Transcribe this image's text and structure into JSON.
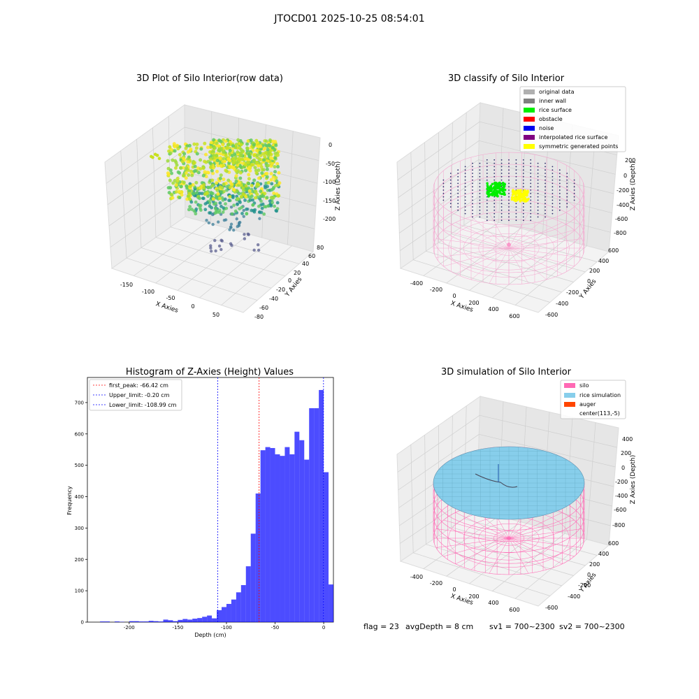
{
  "suptitle": "JTOCD01 2025-10-25 08:54:01",
  "footer": {
    "flag": "flag = 23",
    "avg_depth": "avgDepth = 8 cm",
    "sv1": "sv1 = 700~2300",
    "sv2": "sv2 = 700~2300"
  },
  "panels": {
    "raw": {
      "title": "3D Plot of Silo Interior(row data)",
      "xlabel": "X Axies",
      "ylabel": "Y Axies",
      "zlabel": "Z Axies (Depth)",
      "xticks": [
        "-150",
        "-100",
        "-50",
        "0",
        "50"
      ],
      "yticks": [
        "-80",
        "-60",
        "-40",
        "-20",
        "0",
        "20",
        "40",
        "60",
        "80"
      ],
      "zticks": [
        "0",
        "-50",
        "-100",
        "-150",
        "-200"
      ]
    },
    "classify": {
      "title": "3D classify of Silo Interior",
      "xlabel": "X Axies",
      "ylabel": "Y Axies",
      "zlabel": "Z Axies (Depth)",
      "xticks": [
        "-400",
        "-200",
        "0",
        "200",
        "400",
        "600"
      ],
      "yticks": [
        "-600",
        "-400",
        "-200",
        "0",
        "200",
        "400",
        "600"
      ],
      "zticks": [
        "200",
        "0",
        "-200",
        "-400",
        "-600",
        "-800"
      ],
      "legend": [
        {
          "label": "original data",
          "color": "#b0b0b0"
        },
        {
          "label": "inner wall",
          "color": "#808080"
        },
        {
          "label": "rice surface",
          "color": "#00ee00"
        },
        {
          "label": "obstacle",
          "color": "#ff0000"
        },
        {
          "label": "noise",
          "color": "#0000ee"
        },
        {
          "label": "interpolated rice surface",
          "color": "#800080"
        },
        {
          "label": "symmetric generated points",
          "color": "#ffff00"
        }
      ]
    },
    "histogram": {
      "title": "Histogram of Z-Axies (Height) Values",
      "xlabel": "Depth (cm)",
      "ylabel": "Frequency",
      "xticks": [
        "-200",
        "-150",
        "-100",
        "-50",
        "0"
      ],
      "yticks": [
        "0",
        "100",
        "200",
        "300",
        "400",
        "500",
        "600",
        "700"
      ],
      "legend": [
        {
          "label": "first_peak: -66.42 cm",
          "color": "#ff0000"
        },
        {
          "label": "Upper_limit: -0.20 cm",
          "color": "#0000ff"
        },
        {
          "label": "Lower_limit: -108.99 cm",
          "color": "#0000ff"
        }
      ]
    },
    "simulation": {
      "title": "3D simulation of Silo Interior",
      "xlabel": "X Axies",
      "ylabel": "Y Axies",
      "zlabel": "Z Axies (Depth)",
      "xticks": [
        "-400",
        "-200",
        "0",
        "200",
        "400",
        "600"
      ],
      "yticks": [
        "-600",
        "-400",
        "-200",
        "0",
        "200",
        "400",
        "600"
      ],
      "zticks": [
        "400",
        "200",
        "0",
        "-200",
        "-400",
        "-600",
        "-800"
      ],
      "legend": [
        {
          "label": "silo",
          "color": "#ff69b4"
        },
        {
          "label": "rice simulation",
          "color": "#87ceeb"
        },
        {
          "label": "auger",
          "color": "#ff4500"
        },
        {
          "label": "center(113,-5)",
          "color": ""
        }
      ]
    }
  },
  "chart_data": [
    {
      "type": "scatter",
      "title": "3D Plot of Silo Interior(row data)",
      "xlabel": "X Axies",
      "ylabel": "Y Axies",
      "zlabel": "Z Axies (Depth)",
      "colormap": "viridis",
      "grid": true
    },
    {
      "type": "scatter",
      "title": "3D classify of Silo Interior",
      "xlabel": "X Axies",
      "ylabel": "Y Axies",
      "zlabel": "Z Axies (Depth)",
      "series": [
        {
          "name": "original data",
          "color": "#b0b0b0"
        },
        {
          "name": "inner wall",
          "color": "#808080"
        },
        {
          "name": "rice surface",
          "color": "#00ee00"
        },
        {
          "name": "obstacle",
          "color": "#ff0000"
        },
        {
          "name": "noise",
          "color": "#0000ee"
        },
        {
          "name": "interpolated rice surface",
          "color": "#800080"
        },
        {
          "name": "symmetric generated points",
          "color": "#ffff00"
        }
      ],
      "legend": "top-right",
      "grid": true
    },
    {
      "type": "bar",
      "title": "Histogram of Z-Axies (Height) Values",
      "xlabel": "Depth (cm)",
      "ylabel": "Frequency",
      "xlim": [
        -243,
        10
      ],
      "ylim": [
        0,
        780
      ],
      "bin_width": 5,
      "bars": [
        {
          "x0": -230,
          "v": 2
        },
        {
          "x0": -225,
          "v": 2
        },
        {
          "x0": -215,
          "v": 2
        },
        {
          "x0": -210,
          "v": 1
        },
        {
          "x0": -200,
          "v": 3
        },
        {
          "x0": -195,
          "v": 3
        },
        {
          "x0": -190,
          "v": 2
        },
        {
          "x0": -185,
          "v": 2
        },
        {
          "x0": -180,
          "v": 4
        },
        {
          "x0": -175,
          "v": 3
        },
        {
          "x0": -170,
          "v": 2
        },
        {
          "x0": -165,
          "v": 8
        },
        {
          "x0": -160,
          "v": 6
        },
        {
          "x0": -155,
          "v": 3
        },
        {
          "x0": -150,
          "v": 7
        },
        {
          "x0": -145,
          "v": 10
        },
        {
          "x0": -140,
          "v": 8
        },
        {
          "x0": -135,
          "v": 11
        },
        {
          "x0": -130,
          "v": 13
        },
        {
          "x0": -125,
          "v": 17
        },
        {
          "x0": -120,
          "v": 21
        },
        {
          "x0": -115,
          "v": 12
        },
        {
          "x0": -110,
          "v": 38
        },
        {
          "x0": -105,
          "v": 48
        },
        {
          "x0": -100,
          "v": 58
        },
        {
          "x0": -95,
          "v": 72
        },
        {
          "x0": -90,
          "v": 95
        },
        {
          "x0": -85,
          "v": 118
        },
        {
          "x0": -80,
          "v": 178
        },
        {
          "x0": -75,
          "v": 282
        },
        {
          "x0": -70,
          "v": 410
        },
        {
          "x0": -65,
          "v": 548
        },
        {
          "x0": -60,
          "v": 558
        },
        {
          "x0": -55,
          "v": 555
        },
        {
          "x0": -50,
          "v": 535
        },
        {
          "x0": -45,
          "v": 530
        },
        {
          "x0": -40,
          "v": 558
        },
        {
          "x0": -35,
          "v": 535
        },
        {
          "x0": -30,
          "v": 607
        },
        {
          "x0": -25,
          "v": 580
        },
        {
          "x0": -20,
          "v": 518
        },
        {
          "x0": -15,
          "v": 682
        },
        {
          "x0": -10,
          "v": 682
        },
        {
          "x0": -5,
          "v": 740
        },
        {
          "x0": 0,
          "v": 478
        },
        {
          "x0": 5,
          "v": 120
        }
      ],
      "vlines": [
        {
          "x": -66.42,
          "color": "#ff0000",
          "label": "first_peak: -66.42 cm"
        },
        {
          "x": -0.2,
          "color": "#0000ff",
          "label": "Upper_limit: -0.20 cm"
        },
        {
          "x": -108.99,
          "color": "#0000ff",
          "label": "Lower_limit: -108.99 cm"
        }
      ],
      "legend": "top-left",
      "grid": false
    },
    {
      "type": "scatter",
      "title": "3D simulation of Silo Interior",
      "xlabel": "X Axies",
      "ylabel": "Y Axies",
      "zlabel": "Z Axies (Depth)",
      "series": [
        {
          "name": "silo",
          "color": "#ff69b4"
        },
        {
          "name": "rice simulation",
          "color": "#87ceeb"
        },
        {
          "name": "auger",
          "color": "#ff4500"
        },
        {
          "name": "center(113,-5)"
        }
      ],
      "legend": "top-right",
      "grid": true
    }
  ]
}
